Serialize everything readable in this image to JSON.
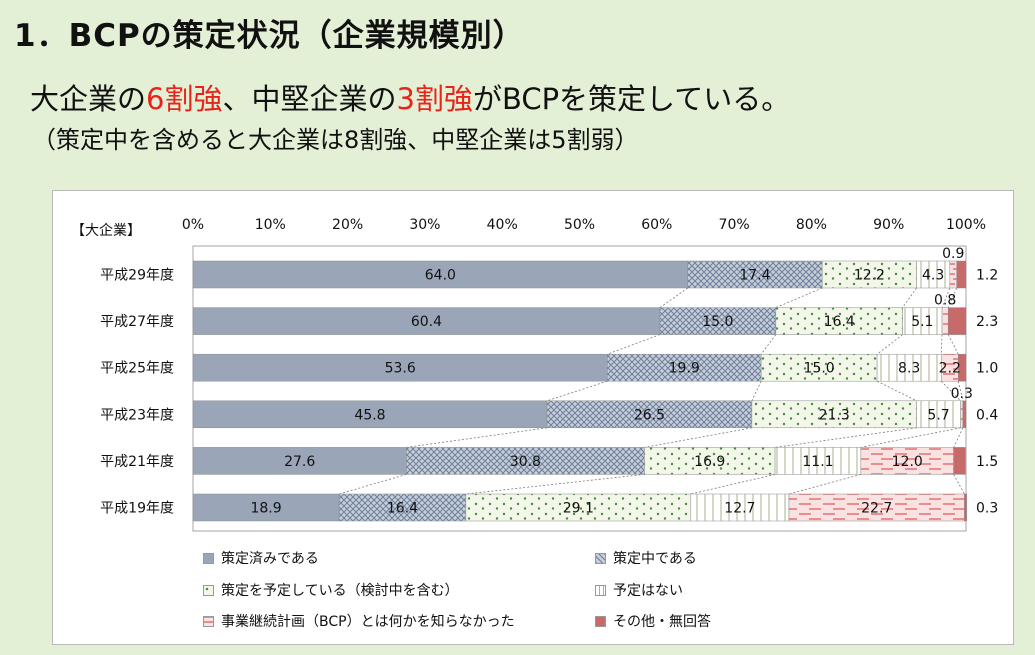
{
  "page": {
    "title": "1．BCPの策定状況（企業規模別）",
    "headline_part1": "大企業の",
    "headline_highlight1": "6割強",
    "headline_part2": "、中堅企業の",
    "headline_highlight2": "3割強",
    "headline_part3": "がBCPを策定している。",
    "subhead": "（策定中を含めると大企業は8割強、中堅企業は5割弱）"
  },
  "colors": {
    "background": "#e3f0d6",
    "headline_highlight": "#e8231a"
  },
  "chart_data": {
    "type": "bar",
    "orientation": "horizontal",
    "stacked": true,
    "group_label": "【大企業】",
    "categories": [
      "平成29年度",
      "平成27年度",
      "平成25年度",
      "平成23年度",
      "平成21年度",
      "平成19年度"
    ],
    "x_ticks": [
      "0%",
      "10%",
      "20%",
      "30%",
      "40%",
      "50%",
      "60%",
      "70%",
      "80%",
      "90%",
      "100%"
    ],
    "xlim": [
      0,
      100
    ],
    "grid": false,
    "legend_position": "bottom",
    "series": [
      {
        "name": "策定済みである",
        "color": "#9aa6b8",
        "pattern": "solid",
        "values": [
          64.0,
          60.4,
          53.6,
          45.8,
          27.6,
          18.9
        ],
        "labels": [
          "64.0",
          "60.4",
          "53.6",
          "45.8",
          "27.6",
          "18.9"
        ]
      },
      {
        "name": "策定中である",
        "color": "#c7ced9",
        "pattern": "crosshatch",
        "values": [
          17.4,
          15.0,
          19.9,
          26.5,
          30.8,
          16.4
        ],
        "labels": [
          "17.4",
          "15.0",
          "19.9",
          "26.5",
          "30.8",
          "16.4"
        ]
      },
      {
        "name": "策定を予定している（検討中を含む）",
        "color": "#f2f7ea",
        "pattern": "dots-green",
        "values": [
          12.2,
          16.4,
          15.0,
          21.3,
          16.9,
          29.1
        ],
        "labels": [
          "12.2",
          "16.4",
          "15.0",
          "21.3",
          "16.9",
          "29.1"
        ]
      },
      {
        "name": "予定はない",
        "color": "#ffffff",
        "pattern": "vertical-lines",
        "values": [
          4.3,
          5.1,
          8.3,
          5.7,
          11.1,
          12.7
        ],
        "labels": [
          "4.3",
          "5.1",
          "8.3",
          "5.7",
          "11.1",
          "12.7"
        ]
      },
      {
        "name": "事業継続計画（BCP）とは何かを知らなかった",
        "color": "#fbe2e2",
        "pattern": "dashes-pink",
        "values": [
          0.9,
          0.8,
          2.2,
          0.3,
          12.0,
          22.7
        ],
        "labels": [
          "0.9",
          "0.8",
          "2.2",
          "0.3",
          "12.0",
          "22.7"
        ]
      },
      {
        "name": "その他・無回答",
        "color": "#c76a6a",
        "pattern": "solid",
        "values": [
          1.2,
          2.3,
          1.0,
          0.4,
          1.5,
          0.3
        ],
        "labels": [
          "1.2",
          "2.3",
          "1.0",
          "0.4",
          "1.5",
          "0.3"
        ]
      }
    ]
  }
}
